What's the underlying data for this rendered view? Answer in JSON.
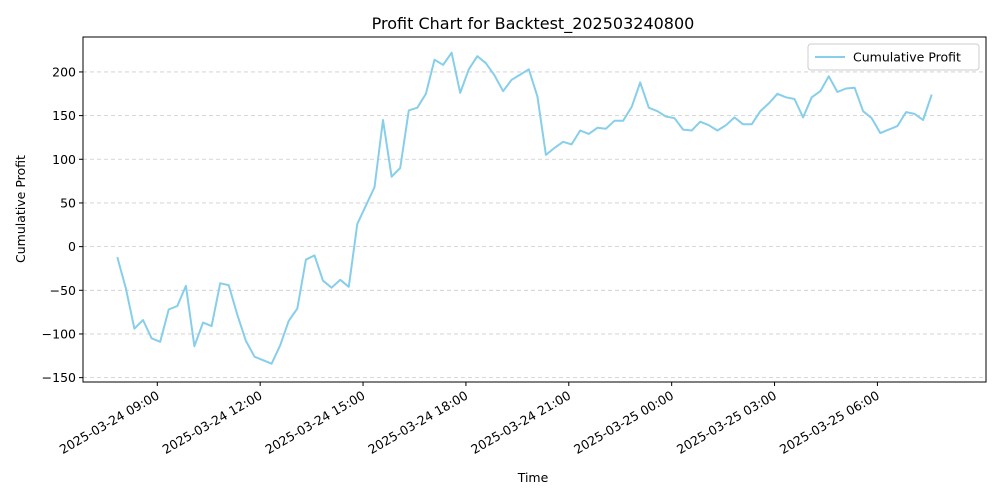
{
  "chart_data": {
    "type": "line",
    "title": "Profit Chart for Backtest_202503240800",
    "xlabel": "Time",
    "ylabel": "Cumulative Profit",
    "x_start": "2025-03-24 07:50:00",
    "x_step_minutes": 15,
    "xlim": [
      "2025-03-24 06:50",
      "2025-03-25 09:10"
    ],
    "ylim": [
      -155,
      240
    ],
    "x_ticks": [
      "2025-03-24 09:00",
      "2025-03-24 12:00",
      "2025-03-24 15:00",
      "2025-03-24 18:00",
      "2025-03-24 21:00",
      "2025-03-25 00:00",
      "2025-03-25 03:00",
      "2025-03-25 06:00"
    ],
    "y_ticks": [
      -150,
      -100,
      -50,
      0,
      50,
      100,
      150,
      200
    ],
    "y_tick_labels": [
      "−150",
      "−100",
      "−50",
      "0",
      "50",
      "100",
      "150",
      "200"
    ],
    "grid": "y-dashed",
    "legend_position": "top-right",
    "color": "#87CEEB",
    "series": [
      {
        "name": "Cumulative Profit",
        "values": [
          -12,
          -48,
          -94,
          -84,
          -105,
          -109,
          -72,
          -68,
          -45,
          -114,
          -87,
          -91,
          -42,
          -44,
          -78,
          -108,
          -126,
          -130,
          -134,
          -113,
          -85,
          -71,
          -15,
          -10,
          -39,
          -47,
          -38,
          -46,
          26,
          47,
          68,
          145,
          80,
          90,
          156,
          159,
          175,
          214,
          208,
          222,
          176,
          203,
          218,
          210,
          196,
          178,
          191,
          197,
          203,
          172,
          105,
          113,
          120,
          117,
          133,
          129,
          136,
          135,
          144,
          144,
          160,
          188,
          159,
          155,
          149,
          147,
          134,
          133,
          143,
          139,
          133,
          139,
          148,
          140,
          140,
          155,
          164,
          175,
          171,
          169,
          148,
          171,
          178,
          195,
          177,
          181,
          182,
          155,
          147,
          130,
          134,
          138,
          154,
          152,
          145,
          174
        ]
      }
    ]
  }
}
